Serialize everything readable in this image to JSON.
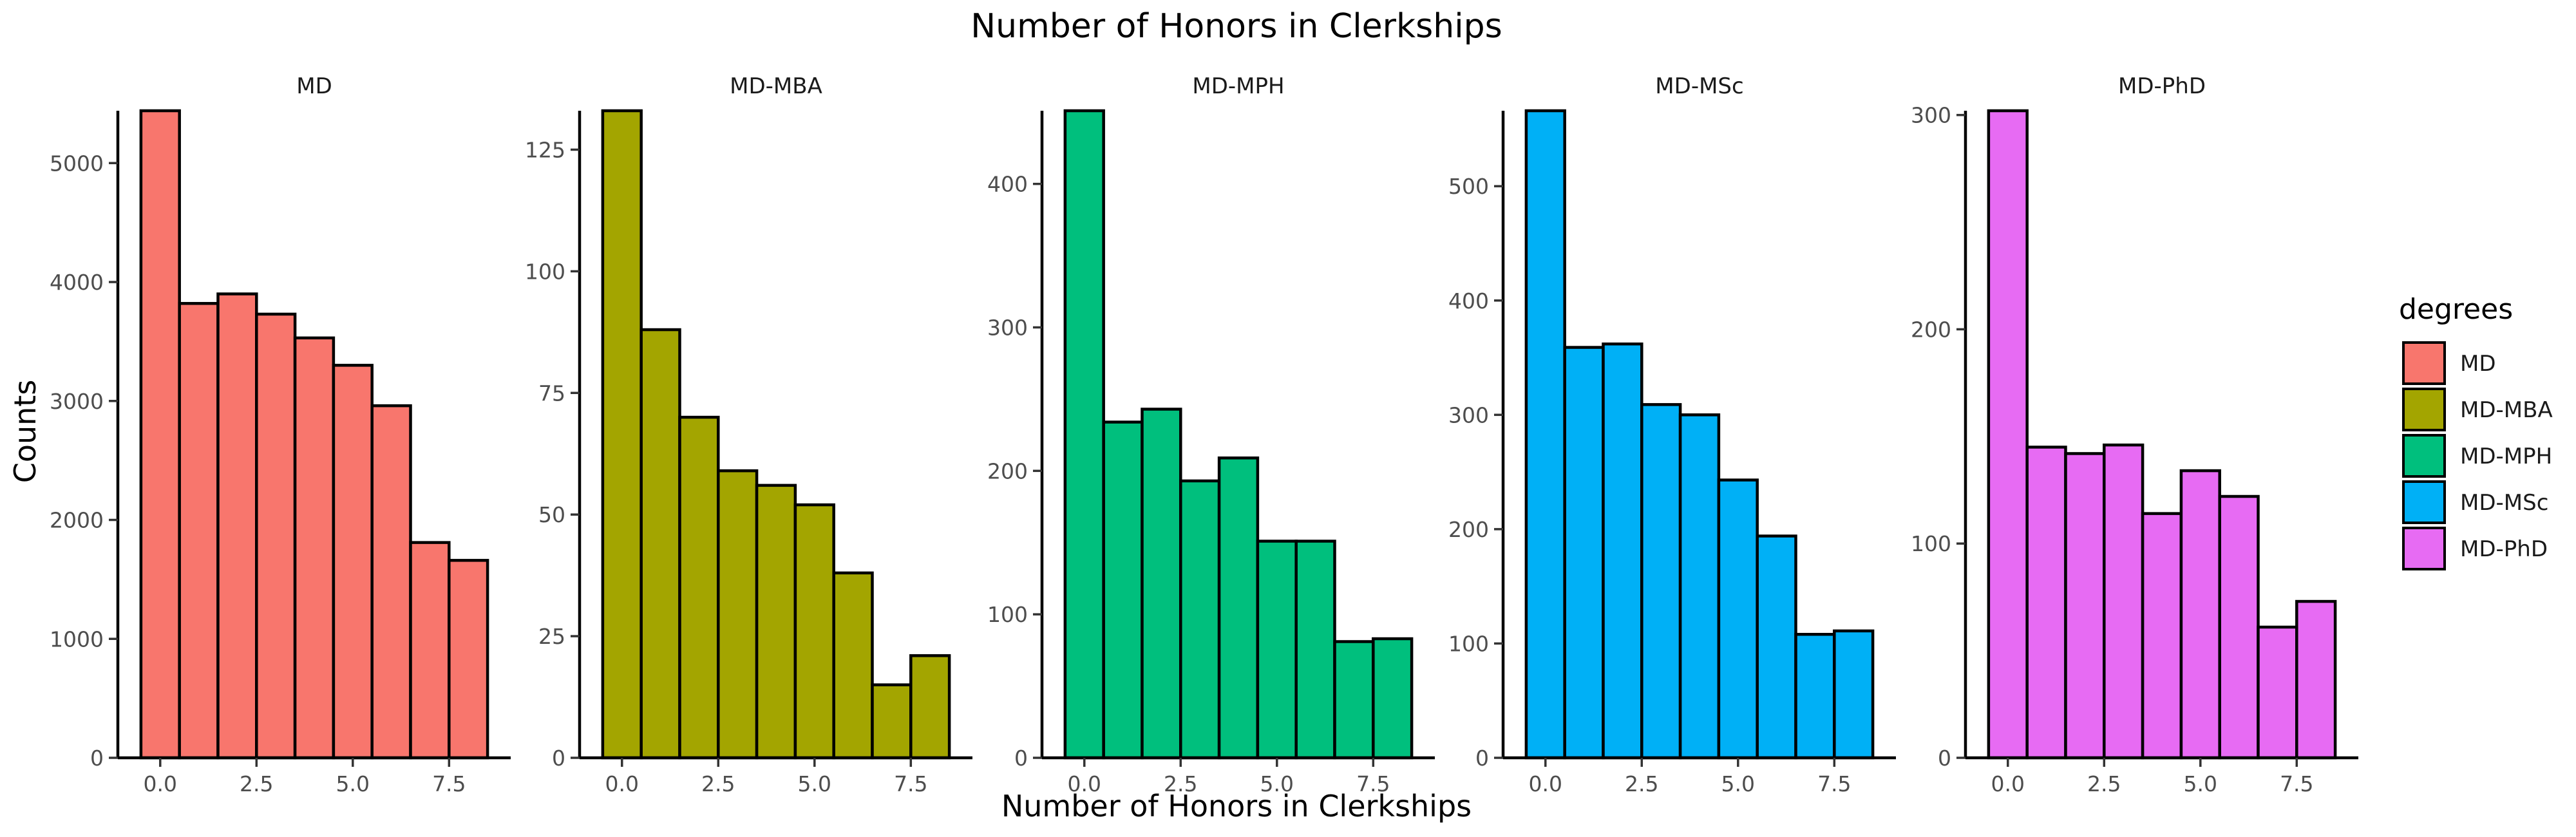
{
  "chart_data": {
    "type": "bar",
    "title": "Number of Honors in Clerkships",
    "xlabel": "Number of Honors in Clerkships",
    "ylabel": "Counts",
    "bin_width": 1,
    "bin_centers": [
      0,
      1,
      2,
      3,
      4,
      5,
      6,
      7,
      8
    ],
    "x_ticks": [
      0,
      2.5,
      5,
      7.5
    ],
    "x_tick_labels": [
      "0.0",
      "2.5",
      "5.0",
      "7.5"
    ],
    "xlim": [
      -1.1,
      9.1
    ],
    "grid": false,
    "legend": {
      "title": "degrees",
      "position": "right",
      "entries": [
        "MD",
        "MD-MBA",
        "MD-MPH",
        "MD-MSc",
        "MD-PhD"
      ]
    },
    "panels": [
      {
        "name": "MD",
        "color": "#F8766D",
        "values": [
          5440,
          3820,
          3900,
          3730,
          3530,
          3300,
          2960,
          1810,
          1660
        ],
        "ylim": [
          0,
          5440
        ],
        "y_ticks": [
          0,
          1000,
          2000,
          3000,
          4000,
          5000
        ],
        "y_tick_labels": [
          "0",
          "1000",
          "2000",
          "3000",
          "4000",
          "5000"
        ]
      },
      {
        "name": "MD-MBA",
        "color": "#A3A500",
        "values": [
          133,
          88,
          70,
          59,
          56,
          52,
          38,
          15,
          21
        ],
        "ylim": [
          0,
          133
        ],
        "y_ticks": [
          0,
          25,
          50,
          75,
          100,
          125
        ],
        "y_tick_labels": [
          "0",
          "25",
          "50",
          "75",
          "100",
          "125"
        ]
      },
      {
        "name": "MD-MPH",
        "color": "#00BF7D",
        "values": [
          451,
          234,
          243,
          193,
          209,
          151,
          151,
          81,
          83
        ],
        "ylim": [
          0,
          451
        ],
        "y_ticks": [
          0,
          100,
          200,
          300,
          400
        ],
        "y_tick_labels": [
          "0",
          "100",
          "200",
          "300",
          "400"
        ]
      },
      {
        "name": "MD-MSc",
        "color": "#00B0F6",
        "values": [
          566,
          359,
          362,
          309,
          300,
          243,
          194,
          108,
          111
        ],
        "ylim": [
          0,
          566
        ],
        "y_ticks": [
          0,
          100,
          200,
          300,
          400,
          500
        ],
        "y_tick_labels": [
          "0",
          "100",
          "200",
          "300",
          "400",
          "500"
        ]
      },
      {
        "name": "MD-PhD",
        "color": "#E76BF3",
        "values": [
          302,
          145,
          142,
          146,
          114,
          134,
          122,
          61,
          73
        ],
        "ylim": [
          0,
          302
        ],
        "y_ticks": [
          0,
          100,
          200,
          300
        ],
        "y_tick_labels": [
          "0",
          "100",
          "200",
          "300"
        ]
      }
    ]
  }
}
